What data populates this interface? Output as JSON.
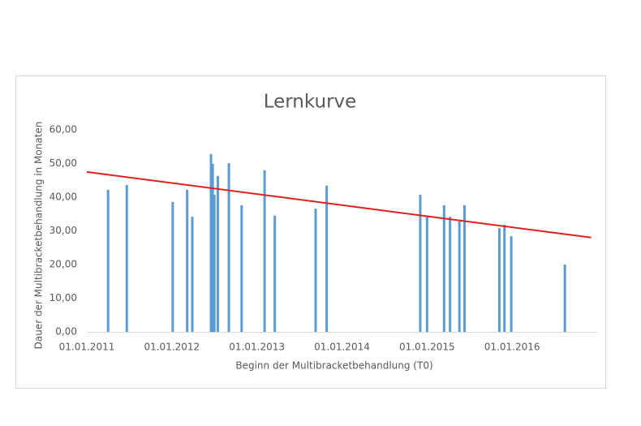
{
  "chart_data": {
    "type": "bar",
    "title": "Lernkurve",
    "x_label": "Beginn der Multibracketbehandlung (T0)",
    "y_label": "Dauer der Multibracketbehandlung in Monaten",
    "x": [
      2011.25,
      2011.47,
      2012.01,
      2012.18,
      2012.24,
      2012.46,
      2012.48,
      2012.5,
      2012.54,
      2012.67,
      2012.82,
      2013.09,
      2013.21,
      2013.69,
      2013.82,
      2014.92,
      2015.0,
      2015.2,
      2015.27,
      2015.38,
      2015.44,
      2015.85,
      2015.91,
      2015.99,
      2016.62
    ],
    "values": [
      42.2,
      43.6,
      38.6,
      42.2,
      34.2,
      52.8,
      49.9,
      40.7,
      46.3,
      50.1,
      37.6,
      48.0,
      34.5,
      36.6,
      43.4,
      40.7,
      34.2,
      37.6,
      34.2,
      32.8,
      37.6,
      30.8,
      31.8,
      28.4,
      20.0
    ],
    "color": "#5b9bd5",
    "trendline": {
      "x": [
        2011,
        2016.93
      ],
      "values": [
        47.5,
        28.0
      ],
      "color": "#e0201e"
    },
    "xlim": [
      2011,
      2017
    ],
    "xticks": [
      {
        "value": 2011,
        "label": "01.01.2011"
      },
      {
        "value": 2012,
        "label": "01.01.2012"
      },
      {
        "value": 2013,
        "label": "01.01.2013"
      },
      {
        "value": 2014,
        "label": "01.01.2014"
      },
      {
        "value": 2015,
        "label": "01.01.2015"
      },
      {
        "value": 2016,
        "label": "01.01.2016"
      }
    ],
    "ylim": [
      0,
      60
    ],
    "yticks": [
      {
        "value": 0,
        "label": "0,00"
      },
      {
        "value": 10,
        "label": "10,00"
      },
      {
        "value": 20,
        "label": "20,00"
      },
      {
        "value": 30,
        "label": "30,00"
      },
      {
        "value": 40,
        "label": "40,00"
      },
      {
        "value": 50,
        "label": "50,00"
      },
      {
        "value": 60,
        "label": "60,00"
      }
    ],
    "grid": false
  }
}
